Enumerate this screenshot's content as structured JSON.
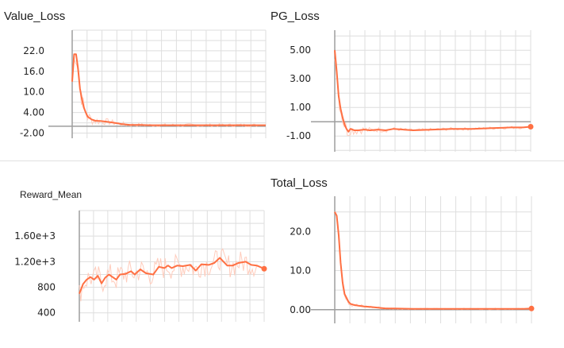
{
  "colors": {
    "line": "#ff7043",
    "raw": "#ffccbc",
    "grid": "#dedede",
    "axis": "#9e9e9e"
  },
  "chart_data": [
    {
      "type": "line",
      "title": "Value_Loss",
      "xlabel": "",
      "ylabel": "",
      "ylim": [
        -3.5,
        28
      ],
      "yticks": [
        -2,
        4,
        10,
        16,
        22
      ],
      "ytick_labels": [
        "-2.00",
        "4.00",
        "10.0",
        "16.0",
        "22.0"
      ],
      "xlim": [
        0,
        100
      ],
      "grid": true,
      "end_marker": false,
      "series": [
        {
          "x": [
            0,
            1,
            2,
            3,
            4,
            5,
            6,
            7,
            8,
            10,
            12,
            15,
            18,
            22,
            26,
            30,
            35,
            40,
            50,
            60,
            70,
            80,
            90,
            100
          ],
          "values": [
            13,
            21,
            21,
            17,
            11,
            8,
            5.5,
            4.0,
            2.8,
            2.0,
            1.6,
            1.5,
            1.3,
            1.0,
            0.6,
            0.4,
            0.4,
            0.3,
            0.3,
            0.3,
            0.3,
            0.3,
            0.3,
            0.3
          ]
        }
      ]
    },
    {
      "type": "line",
      "title": "PG_Loss",
      "xlabel": "",
      "ylabel": "",
      "ylim": [
        -2.1,
        6.4
      ],
      "yticks": [
        -1,
        1,
        3,
        5
      ],
      "ytick_labels": [
        "-1.00",
        "1.00",
        "3.00",
        "5.00"
      ],
      "xlim": [
        0,
        100
      ],
      "grid": true,
      "end_marker": true,
      "series": [
        {
          "x": [
            0,
            1,
            2,
            3,
            4,
            5,
            6,
            7,
            8,
            10,
            12,
            15,
            18,
            22,
            26,
            30,
            40,
            50,
            60,
            70,
            80,
            90,
            96,
            100
          ],
          "values": [
            5.0,
            3.5,
            1.8,
            0.9,
            0.3,
            -0.2,
            -0.5,
            -0.7,
            -0.5,
            -0.6,
            -0.6,
            -0.55,
            -0.6,
            -0.55,
            -0.6,
            -0.5,
            -0.6,
            -0.55,
            -0.5,
            -0.5,
            -0.45,
            -0.4,
            -0.4,
            -0.35
          ]
        }
      ]
    },
    {
      "type": "line",
      "title": "Reward_Mean",
      "xlabel": "",
      "ylabel": "",
      "ylim": [
        260,
        2000
      ],
      "yticks": [
        400,
        800,
        1200,
        1600
      ],
      "ytick_labels": [
        "400",
        "800",
        "1.20e+3",
        "1.60e+3"
      ],
      "xlim": [
        0,
        100
      ],
      "grid": true,
      "end_marker": true,
      "series": [
        {
          "x": [
            0,
            2,
            4,
            6,
            8,
            10,
            12,
            14,
            16,
            18,
            20,
            22,
            25,
            28,
            30,
            33,
            36,
            40,
            43,
            46,
            48,
            50,
            53,
            56,
            60,
            63,
            66,
            70,
            73,
            76,
            80,
            83,
            86,
            90,
            93,
            96,
            100
          ],
          "values": [
            700,
            850,
            920,
            960,
            920,
            980,
            860,
            950,
            1000,
            960,
            920,
            1000,
            1010,
            1050,
            1000,
            1080,
            1020,
            1000,
            1120,
            1100,
            1140,
            1100,
            1140,
            1130,
            1150,
            1060,
            1160,
            1150,
            1180,
            1260,
            1140,
            1140,
            1180,
            1200,
            1150,
            1140,
            1090
          ]
        }
      ]
    },
    {
      "type": "line",
      "title": "Total_Loss",
      "xlabel": "",
      "ylabel": "",
      "ylim": [
        -3.5,
        29
      ],
      "yticks": [
        0,
        10,
        20
      ],
      "ytick_labels": [
        "0.00",
        "10.0",
        "20.0"
      ],
      "xlim": [
        0,
        100
      ],
      "grid": true,
      "end_marker": true,
      "series": [
        {
          "x": [
            0,
            1,
            2,
            3,
            4,
            5,
            6,
            7,
            8,
            10,
            12,
            15,
            18,
            22,
            26,
            30,
            40,
            50,
            60,
            70,
            80,
            90,
            96,
            100
          ],
          "values": [
            25,
            24,
            19,
            12,
            7,
            4,
            3,
            2,
            1.5,
            1.2,
            1.0,
            0.8,
            0.7,
            0.5,
            0.3,
            0.3,
            0.2,
            0.2,
            0.2,
            0.2,
            0.2,
            0.2,
            0.2,
            0.3
          ]
        }
      ]
    }
  ]
}
